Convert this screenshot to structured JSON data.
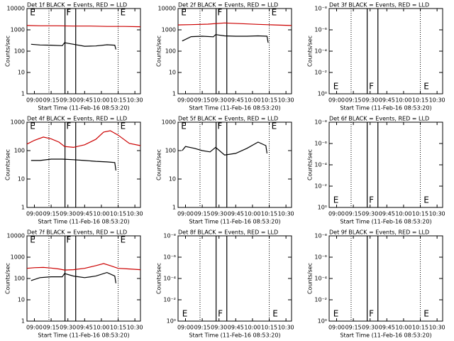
{
  "chart_data": [
    {
      "type": "line",
      "title": "Det 1f BLACK = Events, RED = LLD",
      "ylabel": "Counts/sec",
      "xlabel": "Start Time (11-Feb-16 08:53:20)",
      "log_y": true,
      "xlim": [
        533.33,
        635
      ],
      "ylim": [
        1,
        10000
      ],
      "xticks": [
        {
          "value": 540,
          "label": "09:00"
        },
        {
          "value": 555,
          "label": "09:15"
        },
        {
          "value": 570,
          "label": "09:30"
        },
        {
          "value": 585,
          "label": "09:45"
        },
        {
          "value": 600,
          "label": "10:00"
        },
        {
          "value": 615,
          "label": "10:15"
        },
        {
          "value": 630,
          "label": "10:30"
        }
      ],
      "yticks": [
        1,
        10,
        100,
        1000,
        10000
      ],
      "event_lines": [
        {
          "x": 553,
          "style": "dotted"
        },
        {
          "x": 567.4,
          "style": "solid"
        },
        {
          "x": 577,
          "style": "solid"
        },
        {
          "x": 615,
          "style": "dotted"
        }
      ],
      "annotation_row": "top",
      "annotations": [
        {
          "text": "E",
          "x": 536
        },
        {
          "text": "F",
          "x": 568.5
        },
        {
          "text": "E",
          "x": 617
        }
      ],
      "series": [
        {
          "color": "#cc0000",
          "x": [
            533.33,
            545,
            560,
            575,
            590,
            605,
            620,
            635
          ],
          "values": [
            1600,
            1550,
            1550,
            1500,
            1500,
            1450,
            1450,
            1400
          ]
        },
        {
          "color": "#000000",
          "x": [
            537,
            545,
            555,
            565,
            567,
            575,
            585,
            595,
            605,
            612,
            613
          ],
          "values": [
            210,
            195,
            190,
            180,
            250,
            210,
            170,
            175,
            200,
            190,
            120
          ]
        }
      ]
    },
    {
      "type": "line",
      "title": "Det 2f BLACK = Events, RED = LLD",
      "ylabel": "Counts/sec",
      "xlabel": "Start Time (11-Feb-16 08:53:20)",
      "log_y": true,
      "xlim": [
        533.33,
        635
      ],
      "ylim": [
        1,
        10000
      ],
      "xticks": [
        {
          "value": 540,
          "label": "09:00"
        },
        {
          "value": 555,
          "label": "09:15"
        },
        {
          "value": 570,
          "label": "09:30"
        },
        {
          "value": 585,
          "label": "09:45"
        },
        {
          "value": 600,
          "label": "10:00"
        },
        {
          "value": 615,
          "label": "10:15"
        },
        {
          "value": 630,
          "label": "10:30"
        }
      ],
      "yticks": [
        1,
        10,
        100,
        1000,
        10000
      ],
      "event_lines": [
        {
          "x": 553,
          "style": "dotted"
        },
        {
          "x": 567.4,
          "style": "solid"
        },
        {
          "x": 577,
          "style": "solid"
        },
        {
          "x": 615,
          "style": "dotted"
        }
      ],
      "annotation_row": "top",
      "annotations": [
        {
          "text": "E",
          "x": 536
        },
        {
          "text": "F",
          "x": 568.5
        },
        {
          "text": "E",
          "x": 617
        }
      ],
      "series": [
        {
          "color": "#cc0000",
          "x": [
            533.33,
            545,
            560,
            575,
            590,
            605,
            620,
            635
          ],
          "values": [
            1700,
            1750,
            1850,
            2100,
            1950,
            1800,
            1700,
            1600
          ]
        },
        {
          "color": "#000000",
          "x": [
            537,
            545,
            555,
            565,
            567,
            575,
            585,
            595,
            605,
            613,
            614
          ],
          "values": [
            300,
            480,
            500,
            470,
            600,
            520,
            500,
            500,
            520,
            500,
            250
          ]
        }
      ]
    },
    {
      "type": "line",
      "title": "Det 3f BLACK = Events, RED = LLD",
      "ylabel": "Counts/sec",
      "xlabel": "Start Time (11-Feb-16 08:53:20)",
      "log_y": true,
      "xlim": [
        533.33,
        635
      ],
      "ylim": [
        1,
        1e-08
      ],
      "xticks": [
        {
          "value": 540,
          "label": "09:00"
        },
        {
          "value": 555,
          "label": "09:15"
        },
        {
          "value": 570,
          "label": "09:30"
        },
        {
          "value": 585,
          "label": "09:45"
        },
        {
          "value": 600,
          "label": "10:00"
        },
        {
          "value": 615,
          "label": "10:15"
        },
        {
          "value": 630,
          "label": "10:30"
        }
      ],
      "yticks": [
        {
          "value": 1e-08,
          "label": "10⁻⁸"
        },
        {
          "value": 1e-06,
          "label": "10⁻⁶"
        },
        {
          "value": 0.0001,
          "label": "10⁻⁴"
        },
        {
          "value": 0.01,
          "label": "10⁻²"
        },
        {
          "value": 1,
          "label": "10⁰"
        }
      ],
      "event_lines": [
        {
          "x": 553,
          "style": "dotted"
        },
        {
          "x": 567.4,
          "style": "solid"
        },
        {
          "x": 577,
          "style": "solid"
        },
        {
          "x": 615,
          "style": "dotted"
        }
      ],
      "annotation_row": "bottom",
      "annotations": [
        {
          "text": "E",
          "x": 537
        },
        {
          "text": "F",
          "x": 569
        },
        {
          "text": "E",
          "x": 618
        }
      ],
      "series": []
    },
    {
      "type": "line",
      "title": "Det 4f BLACK = Events, RED = LLD",
      "ylabel": "Counts/sec",
      "xlabel": "Start Time (11-Feb-16 08:53:20)",
      "log_y": true,
      "xlim": [
        533.33,
        635
      ],
      "ylim": [
        1,
        1000
      ],
      "xticks": [
        {
          "value": 540,
          "label": "09:00"
        },
        {
          "value": 555,
          "label": "09:15"
        },
        {
          "value": 570,
          "label": "09:30"
        },
        {
          "value": 585,
          "label": "09:45"
        },
        {
          "value": 600,
          "label": "10:00"
        },
        {
          "value": 615,
          "label": "10:15"
        },
        {
          "value": 630,
          "label": "10:30"
        }
      ],
      "yticks": [
        1,
        10,
        100,
        1000
      ],
      "event_lines": [
        {
          "x": 553,
          "style": "dotted"
        },
        {
          "x": 567.4,
          "style": "solid"
        },
        {
          "x": 577,
          "style": "solid"
        },
        {
          "x": 615,
          "style": "dotted"
        }
      ],
      "annotation_row": "top",
      "annotations": [
        {
          "text": "E",
          "x": 536
        },
        {
          "text": "F",
          "x": 568.5
        },
        {
          "text": "E",
          "x": 617
        }
      ],
      "series": [
        {
          "color": "#cc0000",
          "x": [
            533.33,
            540,
            548,
            555,
            562,
            567,
            575,
            585,
            595,
            602,
            608,
            615,
            625,
            635
          ],
          "values": [
            170,
            230,
            300,
            260,
            200,
            140,
            130,
            160,
            250,
            450,
            500,
            350,
            180,
            150
          ]
        },
        {
          "color": "#000000",
          "x": [
            537,
            545,
            555,
            565,
            575,
            585,
            595,
            605,
            612,
            613
          ],
          "values": [
            45,
            45,
            50,
            50,
            48,
            45,
            42,
            40,
            38,
            20
          ]
        }
      ]
    },
    {
      "type": "line",
      "title": "Det 5f BLACK = Events, RED = LLD",
      "ylabel": "Counts/sec",
      "xlabel": "Start Time (11-Feb-16 08:53:20)",
      "log_y": true,
      "xlim": [
        533.33,
        635
      ],
      "ylim": [
        1,
        1000
      ],
      "xticks": [
        {
          "value": 540,
          "label": "09:00"
        },
        {
          "value": 555,
          "label": "09:15"
        },
        {
          "value": 570,
          "label": "09:30"
        },
        {
          "value": 585,
          "label": "09:45"
        },
        {
          "value": 600,
          "label": "10:00"
        },
        {
          "value": 615,
          "label": "10:15"
        },
        {
          "value": 630,
          "label": "10:30"
        }
      ],
      "yticks": [
        1,
        10,
        100,
        1000
      ],
      "event_lines": [
        {
          "x": 553,
          "style": "dotted"
        },
        {
          "x": 567.4,
          "style": "solid"
        },
        {
          "x": 577,
          "style": "solid"
        },
        {
          "x": 615,
          "style": "dotted"
        }
      ],
      "annotation_row": "top",
      "annotations": [
        {
          "text": "E",
          "x": 536
        },
        {
          "text": "F",
          "x": 568.5
        },
        {
          "text": "E",
          "x": 617
        }
      ],
      "series": [
        {
          "color": "#000000",
          "x": [
            537,
            540,
            548,
            555,
            562,
            567,
            575,
            585,
            595,
            605,
            612,
            613
          ],
          "values": [
            100,
            140,
            120,
            100,
            90,
            130,
            70,
            80,
            120,
            200,
            150,
            80
          ]
        }
      ]
    },
    {
      "type": "line",
      "title": "Det 6f BLACK = Events, RED = LLD",
      "ylabel": "Counts/sec",
      "xlabel": "Start Time (11-Feb-16 08:53:20)",
      "log_y": true,
      "xlim": [
        533.33,
        635
      ],
      "ylim": [
        1,
        1e-08
      ],
      "xticks": [
        {
          "value": 540,
          "label": "09:00"
        },
        {
          "value": 555,
          "label": "09:15"
        },
        {
          "value": 570,
          "label": "09:30"
        },
        {
          "value": 585,
          "label": "09:45"
        },
        {
          "value": 600,
          "label": "10:00"
        },
        {
          "value": 615,
          "label": "10:15"
        },
        {
          "value": 630,
          "label": "10:30"
        }
      ],
      "yticks": [
        {
          "value": 1e-08,
          "label": "10⁻⁸"
        },
        {
          "value": 1e-06,
          "label": "10⁻⁶"
        },
        {
          "value": 0.0001,
          "label": "10⁻⁴"
        },
        {
          "value": 0.01,
          "label": "10⁻²"
        },
        {
          "value": 1,
          "label": "10⁰"
        }
      ],
      "event_lines": [
        {
          "x": 553,
          "style": "dotted"
        },
        {
          "x": 567.4,
          "style": "solid"
        },
        {
          "x": 577,
          "style": "solid"
        },
        {
          "x": 615,
          "style": "dotted"
        }
      ],
      "annotation_row": "bottom",
      "annotations": [
        {
          "text": "E",
          "x": 537
        },
        {
          "text": "F",
          "x": 569
        },
        {
          "text": "E",
          "x": 618
        }
      ],
      "series": []
    },
    {
      "type": "line",
      "title": "Det 7f BLACK = Events, RED = LLD",
      "ylabel": "Counts/sec",
      "xlabel": "Start Time (11-Feb-16 08:53:20)",
      "log_y": true,
      "xlim": [
        533.33,
        635
      ],
      "ylim": [
        1,
        10000
      ],
      "xticks": [
        {
          "value": 540,
          "label": "09:00"
        },
        {
          "value": 555,
          "label": "09:15"
        },
        {
          "value": 570,
          "label": "09:30"
        },
        {
          "value": 585,
          "label": "09:45"
        },
        {
          "value": 600,
          "label": "10:00"
        },
        {
          "value": 615,
          "label": "10:15"
        },
        {
          "value": 630,
          "label": "10:30"
        }
      ],
      "yticks": [
        1,
        10,
        100,
        1000,
        10000
      ],
      "event_lines": [
        {
          "x": 553,
          "style": "dotted"
        },
        {
          "x": 567.4,
          "style": "solid"
        },
        {
          "x": 577,
          "style": "solid"
        },
        {
          "x": 615,
          "style": "dotted"
        }
      ],
      "annotation_row": "top",
      "annotations": [
        {
          "text": "E",
          "x": 536
        },
        {
          "text": "F",
          "x": 568.5
        },
        {
          "text": "E",
          "x": 617
        }
      ],
      "series": [
        {
          "color": "#cc0000",
          "x": [
            533.33,
            540,
            548,
            555,
            562,
            567,
            575,
            585,
            595,
            602,
            608,
            615,
            625,
            635
          ],
          "values": [
            300,
            320,
            330,
            310,
            280,
            250,
            260,
            300,
            400,
            500,
            400,
            300,
            280,
            260
          ]
        },
        {
          "color": "#000000",
          "x": [
            537,
            545,
            555,
            565,
            567,
            575,
            585,
            595,
            605,
            612,
            613
          ],
          "values": [
            80,
            110,
            120,
            120,
            170,
            130,
            110,
            130,
            190,
            130,
            60
          ]
        }
      ]
    },
    {
      "type": "line",
      "title": "Det 8f BLACK = Events, RED = LLD",
      "ylabel": "Counts/sec",
      "xlabel": "Start Time (11-Feb-16 08:53:20)",
      "log_y": true,
      "xlim": [
        533.33,
        635
      ],
      "ylim": [
        1,
        1e-08
      ],
      "xticks": [
        {
          "value": 540,
          "label": "09:00"
        },
        {
          "value": 555,
          "label": "09:15"
        },
        {
          "value": 570,
          "label": "09:30"
        },
        {
          "value": 585,
          "label": "09:45"
        },
        {
          "value": 600,
          "label": "10:00"
        },
        {
          "value": 615,
          "label": "10:15"
        },
        {
          "value": 630,
          "label": "10:30"
        }
      ],
      "yticks": [
        {
          "value": 1e-08,
          "label": "10⁻⁸"
        },
        {
          "value": 1e-06,
          "label": "10⁻⁶"
        },
        {
          "value": 0.0001,
          "label": "10⁻⁴"
        },
        {
          "value": 0.01,
          "label": "10⁻²"
        },
        {
          "value": 1,
          "label": "10⁰"
        }
      ],
      "event_lines": [
        {
          "x": 553,
          "style": "dotted"
        },
        {
          "x": 567.4,
          "style": "solid"
        },
        {
          "x": 577,
          "style": "solid"
        },
        {
          "x": 615,
          "style": "dotted"
        }
      ],
      "annotation_row": "bottom",
      "annotations": [
        {
          "text": "E",
          "x": 537
        },
        {
          "text": "F",
          "x": 569
        },
        {
          "text": "E",
          "x": 618
        }
      ],
      "series": []
    },
    {
      "type": "line",
      "title": "Det 9f BLACK = Events, RED = LLD",
      "ylabel": "Counts/sec",
      "xlabel": "Start Time (11-Feb-16 08:53:20)",
      "log_y": true,
      "xlim": [
        533.33,
        635
      ],
      "ylim": [
        1,
        1e-08
      ],
      "xticks": [
        {
          "value": 540,
          "label": "09:00"
        },
        {
          "value": 555,
          "label": "09:15"
        },
        {
          "value": 570,
          "label": "09:30"
        },
        {
          "value": 585,
          "label": "09:45"
        },
        {
          "value": 600,
          "label": "10:00"
        },
        {
          "value": 615,
          "label": "10:15"
        },
        {
          "value": 630,
          "label": "10:30"
        }
      ],
      "yticks": [
        {
          "value": 1e-08,
          "label": "10⁻⁸"
        },
        {
          "value": 1e-06,
          "label": "10⁻⁶"
        },
        {
          "value": 0.0001,
          "label": "10⁻⁴"
        },
        {
          "value": 0.01,
          "label": "10⁻²"
        },
        {
          "value": 1,
          "label": "10⁰"
        }
      ],
      "event_lines": [
        {
          "x": 553,
          "style": "dotted"
        },
        {
          "x": 567.4,
          "style": "solid"
        },
        {
          "x": 577,
          "style": "solid"
        },
        {
          "x": 615,
          "style": "dotted"
        }
      ],
      "annotation_row": "bottom",
      "annotations": [
        {
          "text": "E",
          "x": 537
        },
        {
          "text": "F",
          "x": 569
        },
        {
          "text": "E",
          "x": 618
        }
      ],
      "series": []
    }
  ]
}
